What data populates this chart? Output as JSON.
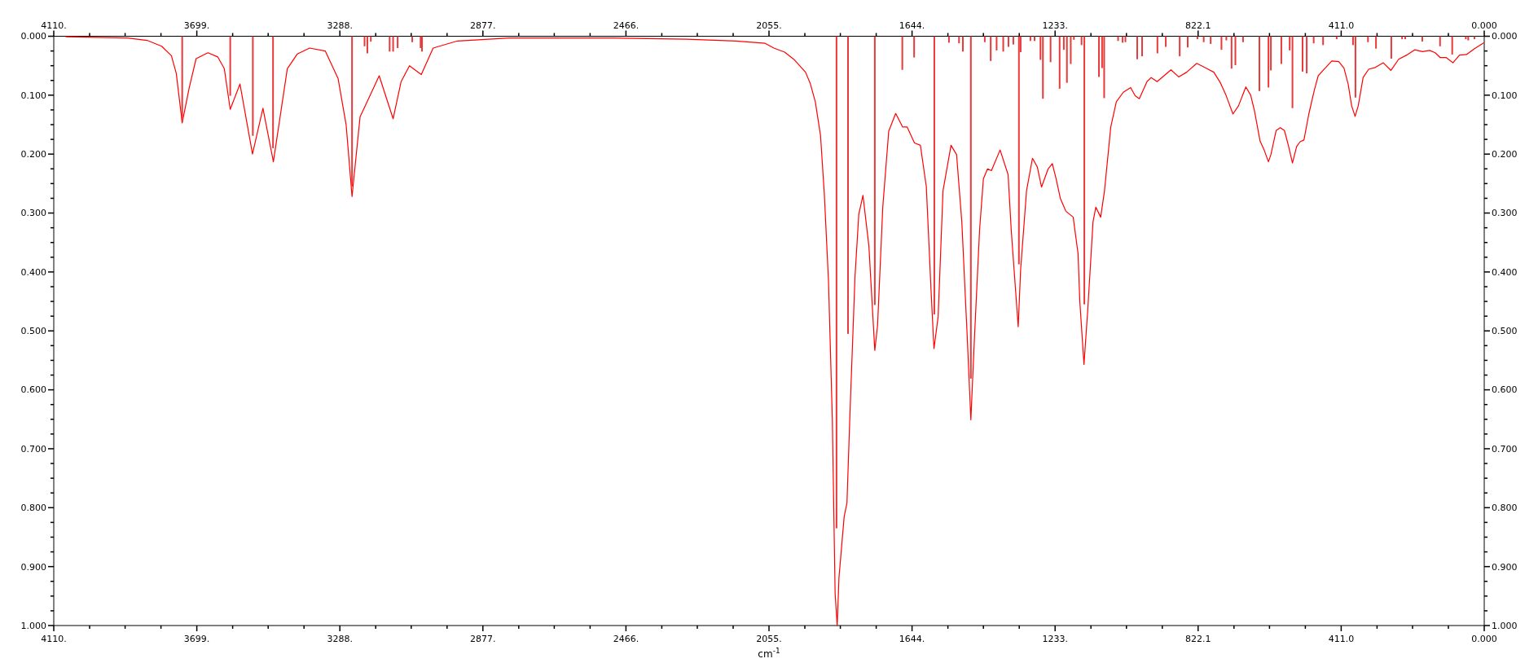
{
  "chart_data": {
    "type": "line",
    "xlabel": "cm$^{-1}$",
    "xlim": [
      4110,
      0
    ],
    "ylim": [
      1,
      0
    ],
    "x2lim": [
      4110,
      0
    ],
    "y2lim": [
      1,
      0
    ],
    "xticks": [
      {
        "value": 4110,
        "label": "4110."
      },
      {
        "value": 3699,
        "label": "3699."
      },
      {
        "value": 3288,
        "label": "3288."
      },
      {
        "value": 2877,
        "label": "2877."
      },
      {
        "value": 2466,
        "label": "2466."
      },
      {
        "value": 2055,
        "label": "2055."
      },
      {
        "value": 1644,
        "label": "1644."
      },
      {
        "value": 1233,
        "label": "1233."
      },
      822.1,
      {
        "value": 411,
        "label": "411.0"
      },
      {
        "value": 0,
        "label": "0.000"
      },
      {
        "value": 4007,
        "label": null
      },
      {
        "value": 3905,
        "label": null
      },
      {
        "value": 3802,
        "label": null
      },
      {
        "value": 3596,
        "label": null
      },
      {
        "value": 3494,
        "label": null
      },
      {
        "value": 3391,
        "label": null
      },
      {
        "value": 3185,
        "label": null
      },
      {
        "value": 3083,
        "label": null
      },
      {
        "value": 2980,
        "label": null
      },
      {
        "value": 2774,
        "label": null
      },
      {
        "value": 2672,
        "label": null
      },
      {
        "value": 2569,
        "label": null
      },
      {
        "value": 2363,
        "label": null
      },
      {
        "value": 2261,
        "label": null
      },
      {
        "value": 2158,
        "label": null
      },
      {
        "value": 1952,
        "label": null
      },
      {
        "value": 1850,
        "label": null
      },
      {
        "value": 1747,
        "label": null
      },
      {
        "value": 1541,
        "label": null
      },
      {
        "value": 1439,
        "label": null
      },
      {
        "value": 1336,
        "label": null
      },
      {
        "value": 1130,
        "label": null
      },
      {
        "value": 1028,
        "label": null
      },
      {
        "value": 925,
        "label": null
      },
      {
        "value": 719,
        "label": null
      },
      {
        "value": 617,
        "label": null
      },
      {
        "value": 514,
        "label": null
      },
      {
        "value": 308,
        "label": null
      },
      {
        "value": 206,
        "label": null
      },
      {
        "value": 103,
        "label": null
      }
    ],
    "x2ticks": [
      {
        "value": 4110,
        "label": "4110."
      },
      {
        "value": 3699,
        "label": "3699."
      },
      {
        "value": 3288,
        "label": "3288."
      },
      {
        "value": 2877,
        "label": "2877."
      },
      {
        "value": 2466,
        "label": "2466."
      },
      {
        "value": 2055,
        "label": "2055."
      },
      {
        "value": 1644,
        "label": "1644."
      },
      {
        "value": 1233,
        "label": "1233."
      },
      822.1,
      {
        "value": 411,
        "label": "411.0"
      },
      {
        "value": 0,
        "label": "0.000"
      },
      {
        "value": 4007,
        "label": null
      },
      {
        "value": 3905,
        "label": null
      },
      {
        "value": 3802,
        "label": null
      },
      {
        "value": 3596,
        "label": null
      },
      {
        "value": 3494,
        "label": null
      },
      {
        "value": 3391,
        "label": null
      },
      {
        "value": 3185,
        "label": null
      },
      {
        "value": 3083,
        "label": null
      },
      {
        "value": 2980,
        "label": null
      },
      {
        "value": 2774,
        "label": null
      },
      {
        "value": 2672,
        "label": null
      },
      {
        "value": 2569,
        "label": null
      },
      {
        "value": 2363,
        "label": null
      },
      {
        "value": 2261,
        "label": null
      },
      {
        "value": 2158,
        "label": null
      },
      {
        "value": 1952,
        "label": null
      },
      {
        "value": 1850,
        "label": null
      },
      {
        "value": 1747,
        "label": null
      },
      {
        "value": 1541,
        "label": null
      },
      {
        "value": 1439,
        "label": null
      },
      {
        "value": 1336,
        "label": null
      },
      {
        "value": 1130,
        "label": null
      },
      {
        "value": 1028,
        "label": null
      },
      {
        "value": 925,
        "label": null
      },
      {
        "value": 719,
        "label": null
      },
      {
        "value": 617,
        "label": null
      },
      {
        "value": 514,
        "label": null
      },
      {
        "value": 308,
        "label": null
      },
      {
        "value": 206,
        "label": null
      },
      {
        "value": 103,
        "label": null
      }
    ],
    "yticks": [
      {
        "value": 0,
        "label": "0.000"
      },
      {
        "value": 0.1,
        "label": "0.100"
      },
      {
        "value": 0.2,
        "label": "0.200"
      },
      {
        "value": 0.3,
        "label": "0.300"
      },
      {
        "value": 0.4,
        "label": "0.400"
      },
      {
        "value": 0.5,
        "label": "0.500"
      },
      {
        "value": 0.6,
        "label": "0.600"
      },
      {
        "value": 0.7,
        "label": "0.700"
      },
      {
        "value": 0.8,
        "label": "0.800"
      },
      {
        "value": 0.9,
        "label": "0.900"
      },
      {
        "value": 1,
        "label": "1.000"
      },
      {
        "value": 0.025,
        "label": null
      },
      {
        "value": 0.05,
        "label": null
      },
      {
        "value": 0.075,
        "label": null
      },
      {
        "value": 0.125,
        "label": null
      },
      {
        "value": 0.15,
        "label": null
      },
      {
        "value": 0.175,
        "label": null
      },
      {
        "value": 0.225,
        "label": null
      },
      {
        "value": 0.25,
        "label": null
      },
      {
        "value": 0.275,
        "label": null
      },
      {
        "value": 0.325,
        "label": null
      },
      {
        "value": 0.35,
        "label": null
      },
      {
        "value": 0.375,
        "label": null
      },
      {
        "value": 0.425,
        "label": null
      },
      {
        "value": 0.45,
        "label": null
      },
      {
        "value": 0.475,
        "label": null
      },
      {
        "value": 0.525,
        "label": null
      },
      {
        "value": 0.55,
        "label": null
      },
      {
        "value": 0.575,
        "label": null
      },
      {
        "value": 0.625,
        "label": null
      },
      {
        "value": 0.65,
        "label": null
      },
      {
        "value": 0.675,
        "label": null
      },
      {
        "value": 0.725,
        "label": null
      },
      {
        "value": 0.75,
        "label": null
      },
      {
        "value": 0.775,
        "label": null
      },
      {
        "value": 0.825,
        "label": null
      },
      {
        "value": 0.85,
        "label": null
      },
      {
        "value": 0.875,
        "label": null
      },
      {
        "value": 0.925,
        "label": null
      },
      {
        "value": 0.95,
        "label": null
      },
      {
        "value": 0.975,
        "label": null
      }
    ],
    "y2ticks": [
      {
        "value": 0,
        "label": "0.000"
      },
      {
        "value": 0.1,
        "label": "0.100"
      },
      {
        "value": 0.2,
        "label": "0.200"
      },
      {
        "value": 0.3,
        "label": "0.300"
      },
      {
        "value": 0.4,
        "label": "0.400"
      },
      {
        "value": 0.5,
        "label": "0.500"
      },
      {
        "value": 0.6,
        "label": "0.600"
      },
      {
        "value": 0.7,
        "label": "0.700"
      },
      {
        "value": 0.8,
        "label": "0.800"
      },
      {
        "value": 0.9,
        "label": "0.900"
      },
      {
        "value": 1,
        "label": "1.000"
      },
      {
        "value": 0.025,
        "label": null
      },
      {
        "value": 0.05,
        "label": null
      },
      {
        "value": 0.075,
        "label": null
      },
      {
        "value": 0.125,
        "label": null
      },
      {
        "value": 0.15,
        "label": null
      },
      {
        "value": 0.175,
        "label": null
      },
      {
        "value": 0.225,
        "label": null
      },
      {
        "value": 0.25,
        "label": null
      },
      {
        "value": 0.275,
        "label": null
      },
      {
        "value": 0.325,
        "label": null
      },
      {
        "value": 0.35,
        "label": null
      },
      {
        "value": 0.375,
        "label": null
      },
      {
        "value": 0.425,
        "label": null
      },
      {
        "value": 0.45,
        "label": null
      },
      {
        "value": 0.475,
        "label": null
      },
      {
        "value": 0.525,
        "label": null
      },
      {
        "value": 0.55,
        "label": null
      },
      {
        "value": 0.575,
        "label": null
      },
      {
        "value": 0.625,
        "label": null
      },
      {
        "value": 0.65,
        "label": null
      },
      {
        "value": 0.675,
        "label": null
      },
      {
        "value": 0.725,
        "label": null
      },
      {
        "value": 0.75,
        "label": null
      },
      {
        "value": 0.775,
        "label": null
      },
      {
        "value": 0.825,
        "label": null
      },
      {
        "value": 0.85,
        "label": null
      },
      {
        "value": 0.875,
        "label": null
      },
      {
        "value": 0.925,
        "label": null
      },
      {
        "value": 0.95,
        "label": null
      },
      {
        "value": 0.975,
        "label": null
      }
    ],
    "series": [
      {
        "color": "#ff0000",
        "x": [
          4076,
          3899,
          3842,
          3800,
          3772,
          3758,
          3741,
          3721,
          3701,
          3667,
          3639,
          3620,
          3603,
          3575,
          3539,
          3509,
          3479,
          3439,
          3410,
          3375,
          3330,
          3293,
          3270,
          3253,
          3230,
          3204,
          3175,
          3135,
          3112,
          3088,
          3054,
          3020,
          2950,
          2800,
          2500,
          2292,
          2150,
          2066,
          2041,
          2010,
          1984,
          1950,
          1936,
          1922,
          1907,
          1896,
          1884,
          1873,
          1865,
          1859,
          1854,
          1839,
          1831,
          1823,
          1808,
          1797,
          1785,
          1768,
          1751,
          1743,
          1728,
          1711,
          1691,
          1671,
          1658,
          1637,
          1620,
          1603,
          1589,
          1581,
          1569,
          1555,
          1532,
          1516,
          1501,
          1486,
          1475,
          1464,
          1450,
          1439,
          1427,
          1416,
          1391,
          1368,
          1359,
          1339,
          1332,
          1315,
          1298,
          1284,
          1272,
          1253,
          1241,
          1230,
          1218,
          1202,
          1181,
          1167,
          1162,
          1150,
          1139,
          1124,
          1116,
          1102,
          1091,
          1073,
          1057,
          1037,
          1016,
          1003,
          991,
          969,
          957,
          940,
          900,
          878,
          855,
          826,
          800,
          777,
          758,
          742,
          722,
          706,
          685,
          671,
          660,
          644,
          633,
          620,
          613,
          598,
          586,
          574,
          562,
          551,
          539,
          529,
          518,
          504,
          488,
          477,
          463,
          438,
          418,
          403,
          391,
          381,
          371,
          362,
          348,
          332,
          313,
          290,
          268,
          246,
          223,
          200,
          177,
          157,
          141,
          127,
          110,
          90,
          71,
          51,
          28,
          1
        ],
        "values": [
          0.001,
          0.003,
          0.007,
          0.017,
          0.033,
          0.063,
          0.147,
          0.088,
          0.038,
          0.028,
          0.035,
          0.055,
          0.124,
          0.081,
          0.2,
          0.122,
          0.213,
          0.055,
          0.03,
          0.02,
          0.025,
          0.072,
          0.15,
          0.272,
          0.137,
          0.104,
          0.067,
          0.14,
          0.077,
          0.05,
          0.065,
          0.02,
          0.008,
          0.003,
          0.003,
          0.005,
          0.008,
          0.012,
          0.02,
          0.027,
          0.039,
          0.061,
          0.081,
          0.111,
          0.168,
          0.268,
          0.416,
          0.651,
          0.946,
          1,
          0.919,
          0.815,
          0.792,
          0.651,
          0.409,
          0.302,
          0.27,
          0.356,
          0.533,
          0.49,
          0.289,
          0.161,
          0.131,
          0.154,
          0.154,
          0.181,
          0.185,
          0.255,
          0.436,
          0.53,
          0.476,
          0.262,
          0.185,
          0.201,
          0.315,
          0.503,
          0.651,
          0.503,
          0.329,
          0.242,
          0.225,
          0.228,
          0.193,
          0.235,
          0.329,
          0.493,
          0.396,
          0.262,
          0.207,
          0.222,
          0.256,
          0.225,
          0.216,
          0.242,
          0.275,
          0.297,
          0.307,
          0.369,
          0.45,
          0.557,
          0.463,
          0.315,
          0.29,
          0.307,
          0.262,
          0.154,
          0.111,
          0.095,
          0.087,
          0.101,
          0.106,
          0.077,
          0.07,
          0.077,
          0.057,
          0.069,
          0.061,
          0.046,
          0.054,
          0.061,
          0.079,
          0.1,
          0.132,
          0.118,
          0.086,
          0.1,
          0.127,
          0.178,
          0.192,
          0.213,
          0.201,
          0.16,
          0.155,
          0.16,
          0.187,
          0.215,
          0.187,
          0.179,
          0.176,
          0.132,
          0.091,
          0.067,
          0.058,
          0.042,
          0.043,
          0.054,
          0.081,
          0.118,
          0.136,
          0.118,
          0.07,
          0.056,
          0.053,
          0.045,
          0.058,
          0.039,
          0.032,
          0.023,
          0.026,
          0.024,
          0.028,
          0.036,
          0.036,
          0.045,
          0.032,
          0.031,
          0.021,
          0.011
        ]
      },
      {
        "type": "bar",
        "color": "#e83a3a",
        "x": [
          3741,
          3603,
          3538,
          3480,
          3253,
          3217,
          3209,
          3199,
          3145,
          3135,
          3122,
          3080,
          3056,
          3052,
          1861,
          1828,
          1751,
          1672,
          1638,
          1580,
          1538,
          1509,
          1498,
          1475,
          1435,
          1418,
          1401,
          1382,
          1367,
          1353,
          1337,
          1332,
          1304,
          1292,
          1275,
          1268,
          1246,
          1220,
          1208,
          1199,
          1188,
          1179,
          1157,
          1149,
          1107,
          1098,
          1092,
          1052,
          1039,
          1031,
          997,
          983,
          939,
          915,
          875,
          852,
          824,
          806,
          786,
          755,
          741,
          726,
          715,
          693,
          646,
          620,
          613,
          583,
          559,
          551,
          522,
          510,
          490,
          463,
          424,
          377,
          370,
          334,
          311,
          267,
          236,
          227,
          178,
          127,
          92,
          53,
          46,
          28
        ],
        "values": [
          0.145,
          0.101,
          0.169,
          0.19,
          0.255,
          0.017,
          0.029,
          0.009,
          0.026,
          0.026,
          0.02,
          0.01,
          0.02,
          0.026,
          0.835,
          0.505,
          0.456,
          0.057,
          0.036,
          0.472,
          0.011,
          0.012,
          0.026,
          0.581,
          0.01,
          0.042,
          0.024,
          0.026,
          0.018,
          0.014,
          0.387,
          0.027,
          0.008,
          0.008,
          0.04,
          0.106,
          0.044,
          0.089,
          0.023,
          0.079,
          0.047,
          0.006,
          0.015,
          0.455,
          0.069,
          0.054,
          0.105,
          0.008,
          0.011,
          0.01,
          0.039,
          0.034,
          0.029,
          0.018,
          0.034,
          0.019,
          0.005,
          0.01,
          0.013,
          0.023,
          0.007,
          0.055,
          0.049,
          0.01,
          0.093,
          0.087,
          0.058,
          0.047,
          0.024,
          0.122,
          0.06,
          0.063,
          0.012,
          0.015,
          0.005,
          0.015,
          0.104,
          0.01,
          0.021,
          0.038,
          0.005,
          0.005,
          0.009,
          0.017,
          0.031,
          0.005,
          0.007,
          0.005
        ]
      }
    ]
  }
}
